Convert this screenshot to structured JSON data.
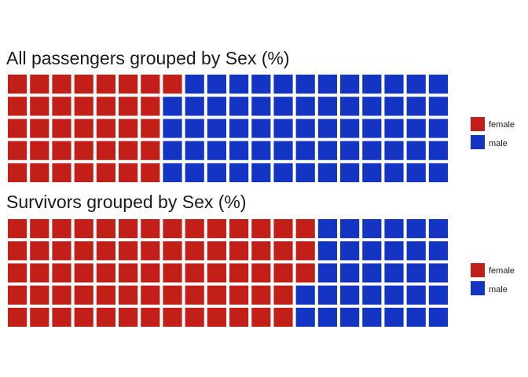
{
  "colors": {
    "female": "#c21f18",
    "male": "#1435c4",
    "background": "#ffffff"
  },
  "chart_data": [
    {
      "type": "waffle",
      "title": "All passengers grouped by Sex (%)",
      "grid": {
        "rows": 5,
        "cols": 20,
        "unit_percent": 1,
        "fill_order": "column-major from left"
      },
      "categories": [
        "female",
        "male"
      ],
      "values": [
        36,
        64
      ],
      "legend": {
        "entries": [
          "female",
          "male"
        ],
        "placement": "right"
      }
    },
    {
      "type": "waffle",
      "title": "Survivors grouped by Sex (%)",
      "grid": {
        "rows": 5,
        "cols": 20,
        "unit_percent": 1,
        "fill_order": "column-major from left"
      },
      "categories": [
        "female",
        "male"
      ],
      "values": [
        68,
        32
      ],
      "legend": {
        "entries": [
          "female",
          "male"
        ],
        "placement": "right"
      }
    }
  ]
}
